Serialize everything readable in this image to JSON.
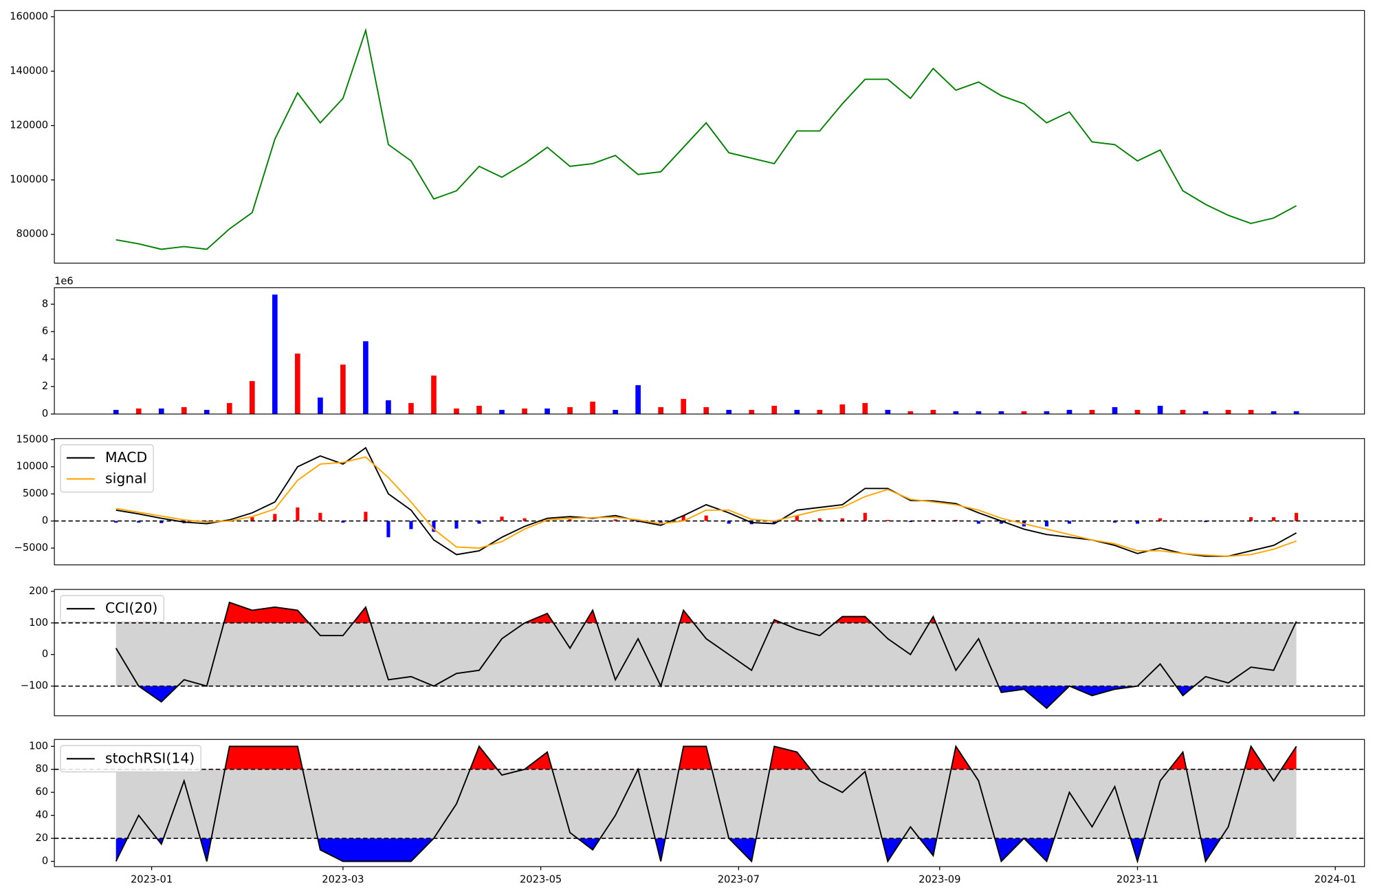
{
  "chart_data": [
    {
      "type": "line",
      "ylim": [
        69400,
        162300
      ],
      "yticks": [
        80000,
        100000,
        120000,
        140000,
        160000
      ],
      "series": [
        {
          "color": "green",
          "values": [
            78000,
            76500,
            74500,
            75500,
            74500,
            82000,
            88000,
            115000,
            132000,
            121000,
            130000,
            155000,
            113000,
            107000,
            93000,
            96000,
            105000,
            101000,
            106000,
            112000,
            105000,
            106000,
            109000,
            102000,
            103000,
            112000,
            121000,
            110000,
            108000,
            106000,
            118000,
            118000,
            128000,
            137000,
            137000,
            130000,
            141000,
            133000,
            136000,
            131000,
            128000,
            121000,
            125000,
            114000,
            113000,
            107000,
            111000,
            96000,
            91000,
            87000,
            84000,
            86000,
            90500
          ]
        }
      ]
    },
    {
      "type": "bar",
      "ylim": [
        0,
        9200000
      ],
      "y_offset_label": "1e6",
      "yticks": [
        {
          "value": 0,
          "label": "0"
        },
        {
          "value": 2000000,
          "label": "2"
        },
        {
          "value": 4000000,
          "label": "4"
        },
        {
          "value": 6000000,
          "label": "6"
        },
        {
          "value": 8000000,
          "label": "8"
        }
      ],
      "values": [
        300000,
        400000,
        400000,
        500000,
        300000,
        800000,
        2400000,
        8700000,
        4400000,
        1200000,
        3600000,
        5300000,
        1000000,
        800000,
        2800000,
        400000,
        600000,
        300000,
        400000,
        400000,
        500000,
        900000,
        300000,
        2100000,
        500000,
        1100000,
        500000,
        300000,
        300000,
        600000,
        300000,
        300000,
        700000,
        800000,
        300000,
        200000,
        300000,
        200000,
        200000,
        200000,
        200000,
        200000,
        300000,
        300000,
        500000,
        300000,
        600000,
        300000,
        200000,
        300000,
        300000,
        200000,
        200000
      ],
      "colors": [
        "blue",
        "red",
        "blue",
        "red",
        "blue",
        "red",
        "red",
        "blue",
        "red",
        "blue",
        "red",
        "blue",
        "blue",
        "red",
        "red",
        "red",
        "red",
        "blue",
        "red",
        "blue",
        "red",
        "red",
        "blue",
        "blue",
        "red",
        "red",
        "red",
        "blue",
        "red",
        "red",
        "blue",
        "red",
        "red",
        "red",
        "blue",
        "red",
        "red",
        "blue",
        "blue",
        "blue",
        "red",
        "blue",
        "blue",
        "red",
        "blue",
        "red",
        "blue",
        "red",
        "blue",
        "red",
        "red",
        "blue",
        "blue"
      ]
    },
    {
      "type": "line",
      "ylim": [
        -8100,
        15200
      ],
      "legend": "upper left",
      "hlines": [
        0
      ],
      "yticks": [
        {
          "value": -5000,
          "label": "−5000"
        },
        0,
        5000,
        10000,
        15000
      ],
      "series": [
        {
          "name": "MACD",
          "color": "black",
          "values": [
            2000,
            1300,
            500,
            -200,
            -500,
            200,
            1500,
            3500,
            10000,
            12000,
            10500,
            13500,
            5000,
            2000,
            -3500,
            -6200,
            -5500,
            -3000,
            -1000,
            500,
            800,
            500,
            1000,
            0,
            -800,
            1000,
            3000,
            1500,
            -300,
            -500,
            2000,
            2500,
            3000,
            6000,
            6000,
            3800,
            3700,
            3200,
            1500,
            0,
            -1500,
            -2500,
            -3000,
            -3500,
            -4500,
            -6000,
            -5000,
            -6000,
            -6500,
            -6500,
            -5500,
            -4500,
            -2200
          ]
        },
        {
          "name": "signal",
          "color": "orange",
          "values": [
            2300,
            1600,
            900,
            200,
            -200,
            0,
            800,
            2200,
            7500,
            10500,
            10800,
            11800,
            8000,
            3500,
            -1500,
            -4800,
            -5000,
            -3800,
            -1500,
            200,
            500,
            600,
            700,
            200,
            -500,
            0,
            2000,
            2000,
            300,
            0,
            1000,
            2000,
            2500,
            4500,
            5800,
            4000,
            3500,
            3000,
            2000,
            500,
            -500,
            -1500,
            -2500,
            -3500,
            -4200,
            -5500,
            -5500,
            -6000,
            -6300,
            -6500,
            -6200,
            -5200,
            -3700
          ]
        }
      ],
      "histogram": {
        "pos_color": "red",
        "neg_color": "blue",
        "values": [
          -300,
          -300,
          -400,
          -400,
          -300,
          200,
          700,
          1300,
          2500,
          1500,
          -300,
          1700,
          -3000,
          -1500,
          -2000,
          -1400,
          -500,
          800,
          500,
          300,
          300,
          -100,
          300,
          -200,
          -300,
          1000,
          1000,
          -500,
          -600,
          -500,
          1000,
          500,
          500,
          1500,
          200,
          -200,
          200,
          200,
          -500,
          -500,
          -1000,
          -1000,
          -500,
          0,
          -300,
          -500,
          500,
          0,
          -200,
          0,
          700,
          700,
          1500
        ]
      }
    },
    {
      "type": "line",
      "ylim": [
        -194,
        206
      ],
      "legend": "upper left",
      "thresholds": [
        -100,
        100
      ],
      "fill_colors": {
        "above": "red",
        "below": "blue",
        "between": "lightgray"
      },
      "yticks": [
        {
          "value": -100,
          "label": "−100"
        },
        0,
        100,
        200
      ],
      "series": [
        {
          "name": "CCI(20)",
          "color": "black",
          "values": [
            20,
            -100,
            -150,
            -80,
            -100,
            165,
            140,
            150,
            140,
            60,
            60,
            150,
            -80,
            -70,
            -100,
            -60,
            -50,
            50,
            100,
            130,
            20,
            140,
            -80,
            50,
            -100,
            140,
            50,
            0,
            -50,
            110,
            80,
            60,
            120,
            120,
            50,
            0,
            120,
            -50,
            50,
            -120,
            -110,
            -170,
            -100,
            -130,
            -110,
            -100,
            -30,
            -130,
            -70,
            -90,
            -40,
            -50,
            105
          ]
        }
      ]
    },
    {
      "type": "line",
      "ylim": [
        -4.6,
        106
      ],
      "legend": "upper left",
      "thresholds": [
        20,
        80
      ],
      "fill_colors": {
        "above": "red",
        "below": "blue",
        "between": "lightgray"
      },
      "yticks": [
        0,
        20,
        40,
        60,
        80,
        100
      ],
      "xlim": [
        19328,
        19732
      ],
      "xticks": [
        {
          "value": 19358,
          "label": "2023-01"
        },
        {
          "value": 19417,
          "label": "2023-03"
        },
        {
          "value": 19478,
          "label": "2023-05"
        },
        {
          "value": 19539,
          "label": "2023-07"
        },
        {
          "value": 19601,
          "label": "2023-09"
        },
        {
          "value": 19662,
          "label": "2023-11"
        },
        {
          "value": 19723,
          "label": "2024-01"
        }
      ],
      "x": [
        19347,
        19354,
        19361,
        19368,
        19375,
        19382,
        19389,
        19396,
        19403,
        19410,
        19417,
        19424,
        19431,
        19438,
        19445,
        19452,
        19459,
        19466,
        19473,
        19480,
        19487,
        19494,
        19501,
        19508,
        19515,
        19522,
        19529,
        19536,
        19543,
        19550,
        19557,
        19564,
        19571,
        19578,
        19585,
        19592,
        19599,
        19606,
        19613,
        19620,
        19627,
        19634,
        19641,
        19648,
        19655,
        19662,
        19669,
        19676,
        19683,
        19690,
        19697,
        19704,
        19711
      ],
      "series": [
        {
          "name": "stochRSI(14)",
          "color": "black",
          "values": [
            0,
            40,
            15,
            70,
            0,
            100,
            100,
            100,
            100,
            10,
            0,
            0,
            0,
            0,
            20,
            50,
            100,
            75,
            80,
            95,
            25,
            10,
            40,
            80,
            0,
            100,
            100,
            20,
            0,
            100,
            95,
            70,
            60,
            78,
            0,
            30,
            5,
            100,
            70,
            0,
            20,
            0,
            60,
            30,
            65,
            0,
            70,
            95,
            0,
            30,
            100,
            70,
            100
          ]
        }
      ]
    }
  ]
}
